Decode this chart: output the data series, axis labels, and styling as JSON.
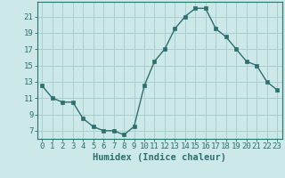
{
  "x": [
    0,
    1,
    2,
    3,
    4,
    5,
    6,
    7,
    8,
    9,
    10,
    11,
    12,
    13,
    14,
    15,
    16,
    17,
    18,
    19,
    20,
    21,
    22,
    23
  ],
  "y": [
    12.5,
    11,
    10.5,
    10.5,
    8.5,
    7.5,
    7,
    7,
    6.5,
    7.5,
    12.5,
    15.5,
    17,
    19.5,
    21,
    22,
    22,
    19.5,
    18.5,
    17,
    15.5,
    15,
    13,
    12
  ],
  "line_color": "#2d7070",
  "marker": "s",
  "marker_size": 2.5,
  "bg_color": "#cce8e8",
  "grid_color": "#aacece",
  "xlabel": "Humidex (Indice chaleur)",
  "xlim": [
    -0.5,
    23.5
  ],
  "ylim": [
    6.0,
    22.8
  ],
  "xticks": [
    0,
    1,
    2,
    3,
    4,
    5,
    6,
    7,
    8,
    9,
    10,
    11,
    12,
    13,
    14,
    15,
    16,
    17,
    18,
    19,
    20,
    21,
    22,
    23
  ],
  "yticks": [
    7,
    9,
    11,
    13,
    15,
    17,
    19,
    21
  ],
  "tick_fontsize": 6.5,
  "xlabel_fontsize": 7.5
}
